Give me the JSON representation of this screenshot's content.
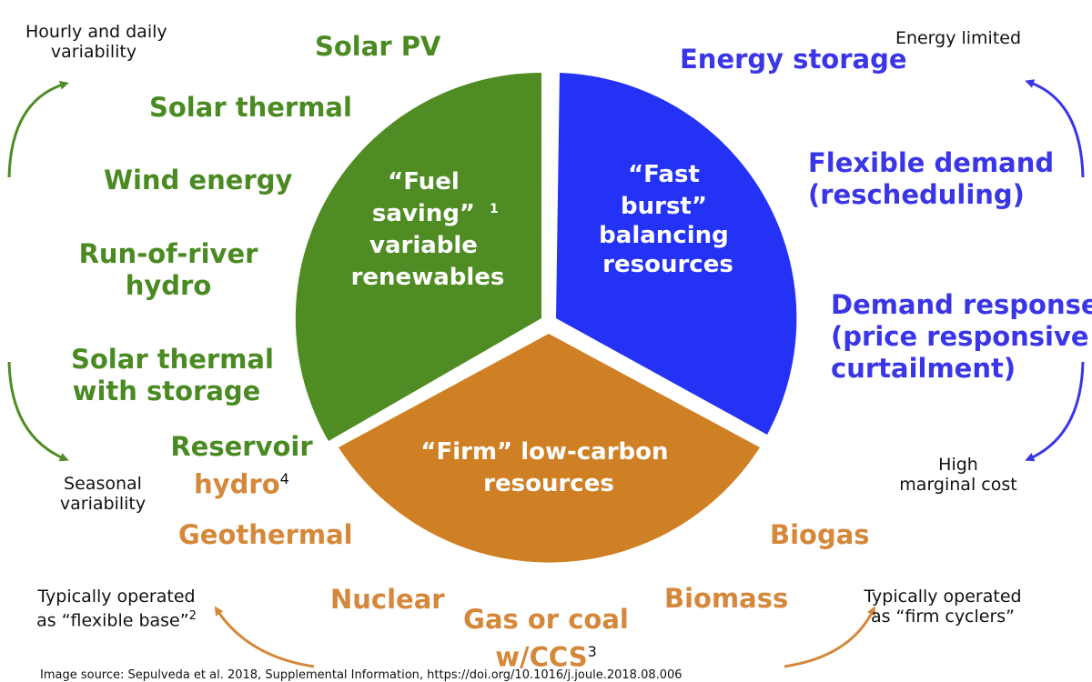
{
  "wedges": {
    "fuel_saving": {
      "color": "#4f8c23",
      "line1": "“Fuel",
      "line2": "saving”",
      "sup": "1",
      "line3": "variable",
      "line4": "renewables"
    },
    "fast_burst": {
      "color": "#2432f6",
      "line1": "“Fast",
      "line2": "burst”",
      "line3": "balancing",
      "line4": "resources"
    },
    "firm": {
      "color": "#d08024",
      "line1": "“Firm” low-carbon",
      "line2": "resources"
    }
  },
  "green_list": {
    "color": "#4a8a22",
    "solar_pv": "Solar PV",
    "solar_thermal": "Solar thermal",
    "wind_energy": "Wind energy",
    "run_of_river_1": "Run-of-river",
    "run_of_river_2": "hydro",
    "solar_storage_1": "Solar thermal",
    "solar_storage_2": "with storage",
    "reservoir_1": "Reservoir",
    "reservoir_2": "hydro",
    "reservoir_sup": "4"
  },
  "blue_list": {
    "color": "#3a35e6",
    "energy_storage": "Energy storage",
    "flex_demand_1": "Flexible demand",
    "flex_demand_2": "(rescheduling)",
    "demand_resp_1": "Demand response",
    "demand_resp_2": "(price responsive",
    "demand_resp_3": "curtailment)"
  },
  "orange_list": {
    "color": "#d5873a",
    "geothermal": "Geothermal",
    "nuclear": "Nuclear",
    "gas_coal_1": "Gas or coal",
    "gas_coal_2": "w/CCS",
    "gas_coal_sup": "3",
    "biogas": "Biogas",
    "biomass": "Biomass"
  },
  "notes": {
    "hourly_1": "Hourly and daily",
    "hourly_2": "variability",
    "seasonal_1": "Seasonal",
    "seasonal_2": "variability",
    "energy_limited": "Energy limited",
    "high_cost_1": "High",
    "high_cost_2": "marginal cost",
    "flex_base_1": "Typically operated",
    "flex_base_2": "as “flexible base”",
    "flex_base_sup": "2",
    "firm_cyclers_1": "Typically operated",
    "firm_cyclers_2": "as “firm cyclers”"
  },
  "source": "Image source: Sepulveda et al. 2018, Supplemental Information, https://doi.org/10.1016/j.joule.2018.08.006"
}
